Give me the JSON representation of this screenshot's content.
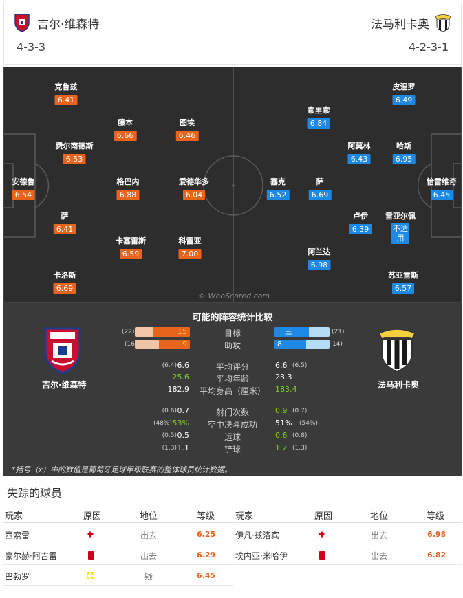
{
  "home": {
    "name": "吉尔·维森特",
    "formation": "4-3-3",
    "colors": {
      "primary": "#c8102e",
      "secondary": "#1a3d8f",
      "rating": "#e8631c"
    },
    "players": [
      {
        "name": "克鲁兹",
        "rating": "6.41"
      },
      {
        "name": "费尔南德斯",
        "rating": "6.53"
      },
      {
        "name": "安德鲁",
        "rating": "6.54"
      },
      {
        "name": "萨",
        "rating": "6.41"
      },
      {
        "name": "卡洛斯",
        "rating": "6.69"
      },
      {
        "name": "藤本",
        "rating": "6.66"
      },
      {
        "name": "格巴内",
        "rating": "6.88"
      },
      {
        "name": "卡塞雷斯",
        "rating": "6.59"
      },
      {
        "name": "图埃",
        "rating": "6.46"
      },
      {
        "name": "爱德华多",
        "rating": "6.04"
      },
      {
        "name": "科雷亚",
        "rating": "7.00"
      }
    ]
  },
  "away": {
    "name": "法马利卡奥",
    "formation": "4-2-3-1",
    "colors": {
      "primary": "#f4d03f",
      "secondary": "#1a1a1a",
      "rating": "#1e88e5"
    },
    "players": [
      {
        "name": "皮涅罗",
        "rating": "6.49"
      },
      {
        "name": "哈斯",
        "rating": "6.95"
      },
      {
        "name": "恰雷维奇",
        "rating": "6.45"
      },
      {
        "name": "雷亚尔佩",
        "rating": "不适用"
      },
      {
        "name": "苏亚雷斯",
        "rating": "6.57"
      },
      {
        "name": "阿莫林",
        "rating": "6.43"
      },
      {
        "name": "卢伊",
        "rating": "6.39"
      },
      {
        "name": "索里索",
        "rating": "6.84"
      },
      {
        "name": "萨",
        "rating": "6.69"
      },
      {
        "name": "阿兰达",
        "rating": "6.98"
      },
      {
        "name": "塞克",
        "rating": "6.52"
      }
    ]
  },
  "watermark": "© WhoScored.com",
  "stats": {
    "title": "可能的阵容统计比较",
    "bars": [
      {
        "label": "目标",
        "home_value": 15,
        "home_season": "(22)",
        "away_value": "十三",
        "away_season": "(21)",
        "home_frac": 0.68,
        "away_frac": 0.62
      },
      {
        "label": "助攻",
        "home_value": 9,
        "home_season": "(16",
        "away_value": 8,
        "away_season": "14)",
        "home_frac": 0.56,
        "away_frac": 0.57
      }
    ],
    "rows": [
      {
        "label": "平均评分",
        "home": "6.6",
        "home_season": "(6.4)",
        "away": "6.6",
        "away_season": "(6.5)",
        "home_better": false,
        "away_better": false
      },
      {
        "label": "平均年龄",
        "home": "25.6",
        "home_season": "",
        "away": "23.3",
        "away_season": "",
        "home_better": true,
        "away_better": false
      },
      {
        "label": "平均身高（厘米）",
        "home": "182.9",
        "home_season": "",
        "away": "183.4",
        "away_season": "",
        "home_better": false,
        "away_better": true
      },
      {
        "label": "射门次数",
        "home": "0.7",
        "home_season": "(0.6)",
        "away": "0.9",
        "away_season": "(0.7)",
        "home_better": false,
        "away_better": true
      },
      {
        "label": "空中决斗成功",
        "home": "53%",
        "home_season": "(48%)",
        "away": "51%",
        "away_season": "(54%)",
        "home_better": true,
        "away_better": false
      },
      {
        "label": "运球",
        "home": "0.5",
        "home_season": "(0.5)",
        "away": "0.6",
        "away_season": "(0.8)",
        "home_better": false,
        "away_better": true
      },
      {
        "label": "铲球",
        "home": "1.1",
        "home_season": "(1.3)",
        "away": "1.2",
        "away_season": "(1.3)",
        "home_better": false,
        "away_better": true
      }
    ],
    "footnote": "*括号（x）中的数值是葡萄牙足球甲级联赛的整体球员统计数据。"
  },
  "missing": {
    "title": "失踪的球员",
    "headers": {
      "player": "玩家",
      "reason": "原因",
      "position": "地位",
      "rating": "等级"
    },
    "home": [
      {
        "player": "西索雷",
        "reason_icon": "injury-icon",
        "position": "出去",
        "rating": "6.25"
      },
      {
        "player": "豪尔赫·阿吉雷",
        "reason_icon": "red-card-icon",
        "position": "出去",
        "rating": "6.29"
      },
      {
        "player": "巴勃罗",
        "reason_icon": "doubtful-icon",
        "position": "疑",
        "rating": "6.45"
      }
    ],
    "away": [
      {
        "player": "伊凡·兹洛宾",
        "reason_icon": "injury-icon",
        "position": "出去",
        "rating": "6.98"
      },
      {
        "player": "埃内亚·米哈伊",
        "reason_icon": "red-card-icon",
        "position": "出去",
        "rating": "6.82"
      }
    ]
  }
}
